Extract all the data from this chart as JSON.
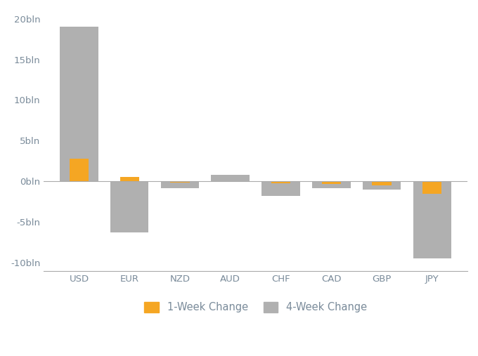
{
  "categories": [
    "USD",
    "EUR",
    "NZD",
    "AUD",
    "CHF",
    "CAD",
    "GBP",
    "JPY"
  ],
  "week1_change": [
    2.8,
    0.5,
    -0.15,
    -0.1,
    -0.2,
    -0.3,
    -0.5,
    -1.5
  ],
  "week4_change": [
    19.0,
    -6.3,
    -0.8,
    0.8,
    -1.8,
    -0.8,
    -1.0,
    -9.5
  ],
  "color_1week": "#f5a623",
  "color_4week": "#b0b0b0",
  "ylim": [
    -11,
    21
  ],
  "yticks": [
    -10,
    -5,
    0,
    5,
    10,
    15,
    20
  ],
  "ytick_labels": [
    "-10bln",
    "-5bln",
    "0bln",
    "5bln",
    "10bln",
    "15bln",
    "20bln"
  ],
  "legend_1week": "1-Week Change",
  "legend_4week": "4-Week Change",
  "background_color": "#ffffff",
  "bar_width": 0.38,
  "tick_fontsize": 9.5,
  "legend_fontsize": 10.5,
  "tick_label_color": "#7a8b9a",
  "zero_line_color": "#aaaaaa",
  "bottom_spine_color": "#aaaaaa"
}
